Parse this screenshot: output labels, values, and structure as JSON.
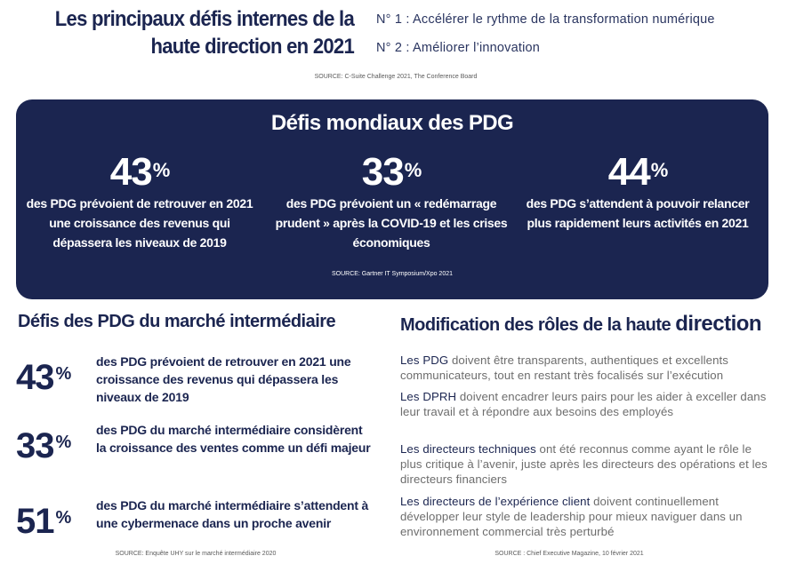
{
  "header": {
    "title": "Les principaux défis internes de la haute direction en 2021",
    "priorities": [
      "N° 1 : Accélérer le rythme de la transformation numérique",
      "N° 2 : Améliorer l’innovation"
    ],
    "source": "SOURCE: C-Suite Challenge 2021, The Conference Board"
  },
  "global": {
    "title": "Défis mondiaux des PDG",
    "stats": [
      {
        "value": "43",
        "unit": "%",
        "text": "des PDG prévoient de retrouver en 2021 une croissance des revenus qui dépassera les niveaux de 2019"
      },
      {
        "value": "33",
        "unit": "%",
        "text": "des PDG prévoient un « redémarrage prudent » après la COVID-19 et les crises économiques"
      },
      {
        "value": "44",
        "unit": "%",
        "text": "des PDG s’attendent à pouvoir relancer plus rapidement leurs activités en 2021"
      }
    ],
    "source": "SOURCE: Gartner IT Symposium/Xpo 2021"
  },
  "midmarket": {
    "title": "Défis des PDG du marché intermédiaire",
    "stats": [
      {
        "value": "43",
        "unit": "%",
        "text": "des PDG prévoient de retrouver en 2021 une croissance des revenus qui dépassera les niveaux de 2019"
      },
      {
        "value": "33",
        "unit": "%",
        "text": "des PDG du marché intermédiaire considèrent la croissance des ventes comme un défi majeur"
      },
      {
        "value": "51",
        "unit": "%",
        "text": "des PDG du marché intermédiaire s’attendent à une cybermenace dans un proche avenir"
      }
    ],
    "source": "SOURCE: Enquête UHY sur le marché intermédiaire 2020"
  },
  "roles": {
    "title_main": "Modification des rôles de la haute ",
    "title_big": "direction",
    "items": [
      {
        "who": "Les PDG",
        "text": " doivent être transparents, authentiques et excellents communicateurs, tout en restant très focalisés sur l’exécution"
      },
      {
        "who": "Les DPRH",
        "text": " doivent encadrer leurs pairs pour les aider à exceller dans leur travail et à répondre aux besoins des employés"
      },
      {
        "who": "Les directeurs techniques",
        "text": " ont été reconnus comme ayant le rôle le plus critique à l’avenir, juste après les directeurs des opérations et les directeurs financiers"
      },
      {
        "who": "Les directeurs de l’expérience client",
        "text": " doivent continuellement développer leur style de leadership pour mieux naviguer dans un environnement commercial très perturbé"
      }
    ],
    "source": "SOURCE : Chief Executive Magazine, 10 février 2021"
  }
}
